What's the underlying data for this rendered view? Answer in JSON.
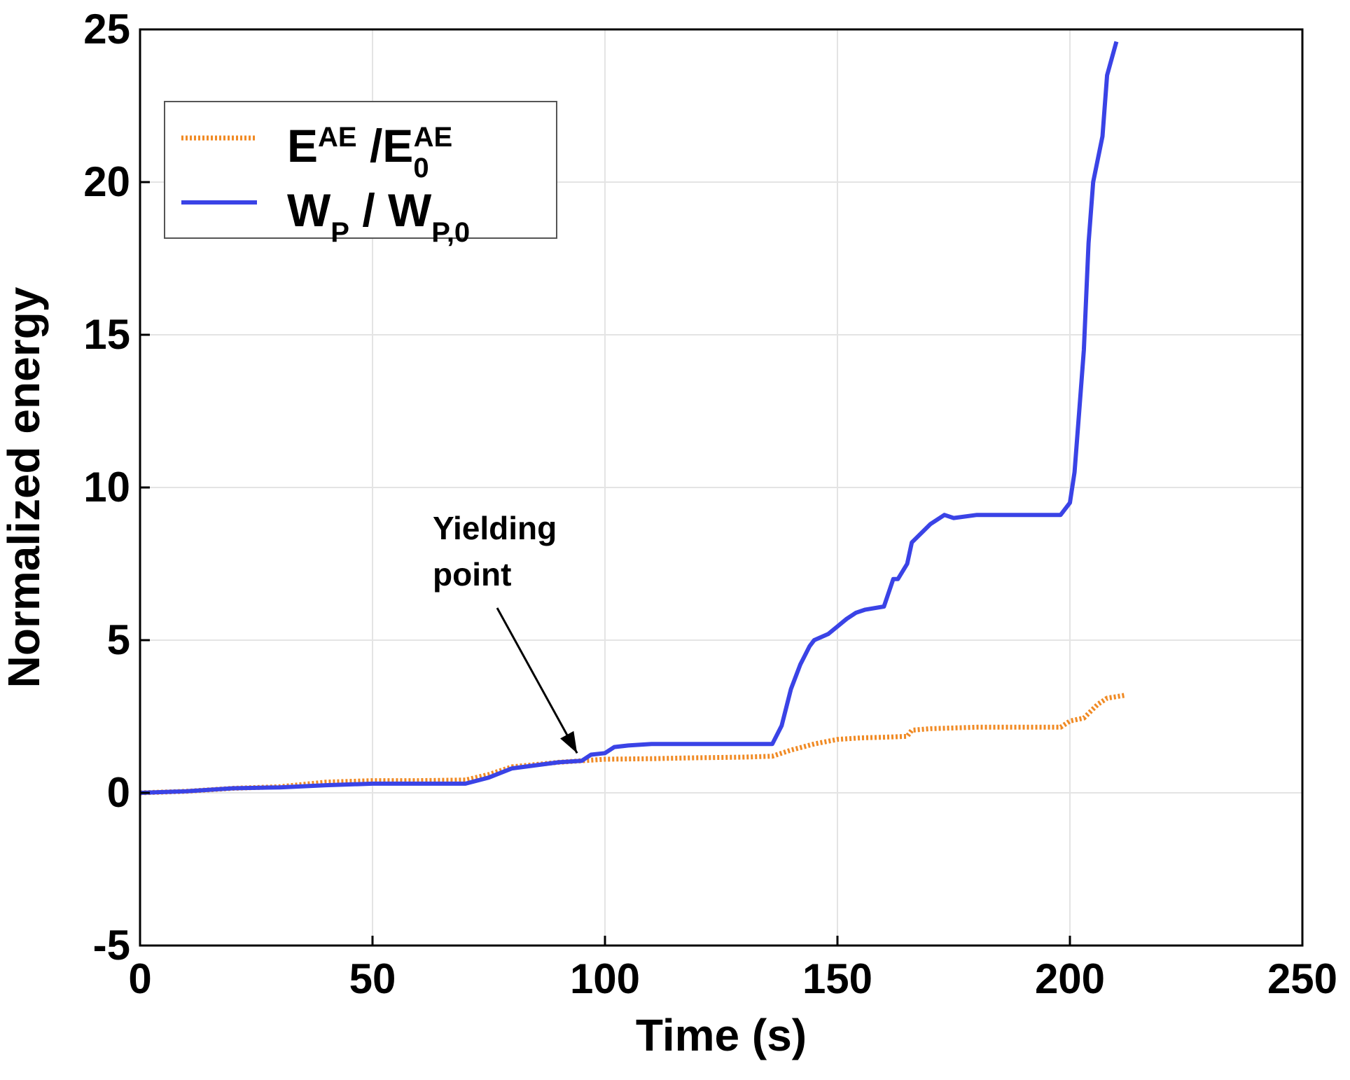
{
  "chart_data": {
    "type": "line",
    "xlabel": "Time (s)",
    "ylabel": "Normalized energy",
    "xlim": [
      0,
      250
    ],
    "ylim": [
      -5,
      25
    ],
    "xticks": [
      "0",
      "50",
      "100",
      "150",
      "200",
      "250"
    ],
    "yticks": [
      "-5",
      "0",
      "5",
      "10",
      "15",
      "20",
      "25"
    ],
    "grid": true,
    "legend_position": "top-left",
    "annotation": {
      "line1": "Yielding",
      "line2": "point",
      "points_to": [
        94,
        1.3
      ]
    },
    "series": [
      {
        "legend": {
          "main1": "E",
          "sup1": "AE",
          "main2": " /E",
          "sub2": "0",
          "sup2": "AE"
        },
        "color": "#f08a24",
        "style": "dotted",
        "x": [
          0,
          10,
          20,
          30,
          40,
          50,
          60,
          70,
          75,
          80,
          90,
          95,
          100,
          110,
          120,
          130,
          136,
          140,
          145,
          150,
          155,
          160,
          165,
          166,
          170,
          180,
          190,
          198,
          200,
          203,
          204,
          206,
          208,
          210,
          212
        ],
        "y": [
          0,
          0.05,
          0.15,
          0.2,
          0.35,
          0.4,
          0.4,
          0.42,
          0.6,
          0.85,
          1.0,
          1.05,
          1.1,
          1.12,
          1.15,
          1.17,
          1.2,
          1.4,
          1.6,
          1.75,
          1.8,
          1.82,
          1.85,
          2.05,
          2.1,
          2.15,
          2.15,
          2.15,
          2.35,
          2.45,
          2.6,
          2.9,
          3.1,
          3.15,
          3.2
        ]
      },
      {
        "legend": {
          "main1": "W",
          "sub1": "P",
          "main2": "  / W",
          "sub2": "P,0"
        },
        "color": "#3a43e6",
        "style": "solid",
        "x": [
          0,
          10,
          20,
          30,
          40,
          50,
          60,
          70,
          75,
          80,
          90,
          95,
          97,
          100,
          102,
          105,
          110,
          120,
          130,
          136,
          138,
          140,
          142,
          144,
          145,
          148,
          150,
          152,
          154,
          156,
          160,
          162,
          163,
          165,
          166,
          168,
          170,
          173,
          175,
          180,
          190,
          198,
          200,
          201,
          202,
          203,
          204,
          205,
          207,
          208,
          210
        ],
        "y": [
          0,
          0.05,
          0.15,
          0.18,
          0.25,
          0.3,
          0.3,
          0.3,
          0.5,
          0.8,
          1.0,
          1.05,
          1.25,
          1.3,
          1.5,
          1.55,
          1.6,
          1.6,
          1.6,
          1.6,
          2.2,
          3.4,
          4.2,
          4.8,
          5.0,
          5.2,
          5.45,
          5.7,
          5.9,
          6.0,
          6.1,
          7.0,
          7.0,
          7.5,
          8.2,
          8.5,
          8.8,
          9.1,
          9.0,
          9.1,
          9.1,
          9.1,
          9.5,
          10.5,
          12.5,
          14.5,
          18.0,
          20.0,
          21.5,
          23.5,
          24.6
        ]
      }
    ]
  }
}
